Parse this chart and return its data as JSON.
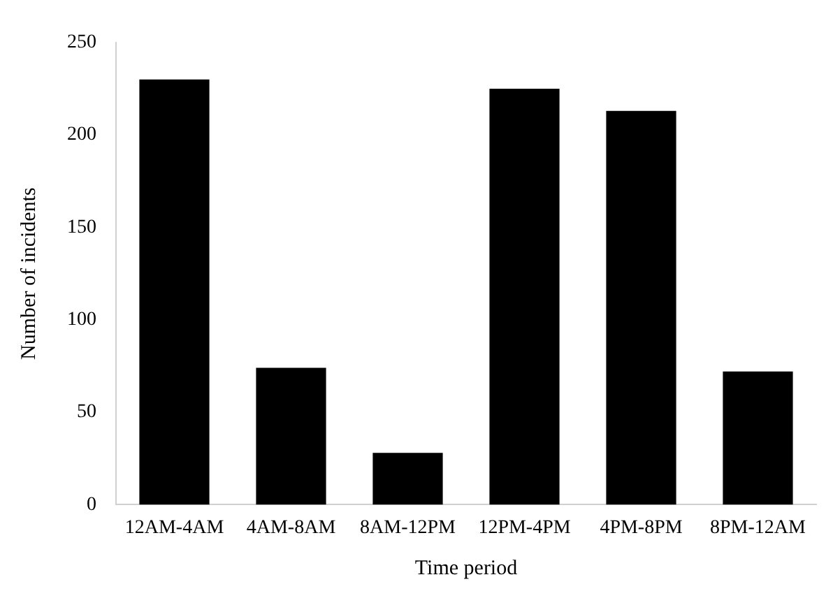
{
  "chart_data": {
    "type": "bar",
    "xlabel": "Time period",
    "ylabel": "Number of incidents",
    "categories": [
      "12AM-4AM",
      "4AM-8AM",
      "8AM-12PM",
      "12PM-4PM",
      "4PM-8PM",
      "8PM-12AM"
    ],
    "values": [
      230,
      74,
      28,
      225,
      213,
      72
    ],
    "color": "#000000",
    "ylim": [
      0,
      250
    ],
    "yticks": [
      0,
      50,
      100,
      150,
      200,
      250
    ],
    "grid": false,
    "legend": false
  }
}
